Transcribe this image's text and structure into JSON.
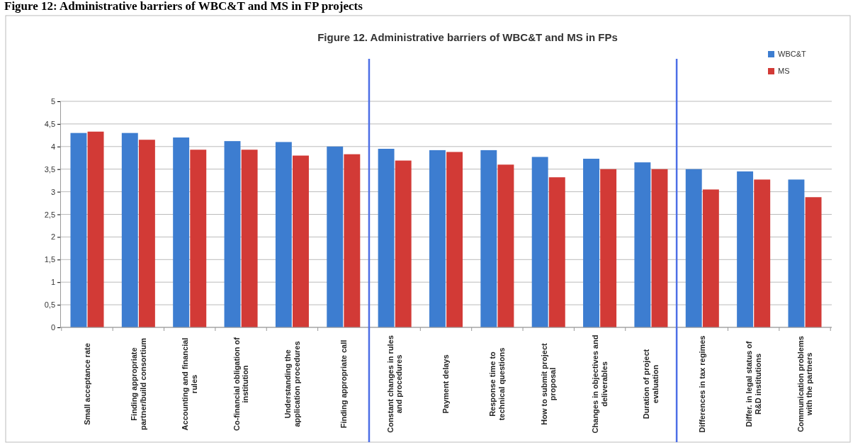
{
  "chart_data": {
    "type": "bar",
    "title": "Figure 12. Administrative barriers of WBC&T and MS in FPs",
    "annotations": [
      "Figure 12: Administrative barriers of WBC&T and MS in FP projects"
    ],
    "categories": [
      "Small acceptance rate",
      "Finding appropriate partner/build consortium",
      "Accounting and financial rules",
      "Co-financial obligation of institution",
      "Understanding the application procedures",
      "Finding appropriate call",
      "Constant changes in rules and procedures",
      "Payment delays",
      "Response time to technical questions",
      "How to submit project proposal",
      "Changes in objectives and deliverables",
      "Duration of project evaluation",
      "Differences in tax regimes",
      "Differ. in legal status of R&D institutions",
      "Communication problems with the partners"
    ],
    "series": [
      {
        "name": "WBC&T",
        "color": "#3d7dd0",
        "values": [
          4.3,
          4.3,
          4.2,
          4.12,
          4.1,
          4.0,
          3.95,
          3.92,
          3.92,
          3.77,
          3.73,
          3.65,
          3.5,
          3.45,
          3.27
        ]
      },
      {
        "name": "MS",
        "color": "#d23a36",
        "values": [
          4.33,
          4.15,
          3.93,
          3.93,
          3.8,
          3.83,
          3.69,
          3.88,
          3.6,
          3.32,
          3.5,
          3.5,
          3.05,
          3.27,
          2.88
        ]
      }
    ],
    "ylim": [
      0,
      5
    ],
    "yticks": [
      0,
      {
        "value": 0.5,
        "label": "0,5"
      },
      1,
      {
        "value": 1.5,
        "label": "1,5"
      },
      2,
      {
        "value": 2.5,
        "label": "2,5"
      },
      3,
      {
        "value": 3.5,
        "label": "3,5"
      },
      4,
      {
        "value": 4.5,
        "label": "4,5"
      },
      5
    ],
    "grid": "y",
    "legend": "top right"
  }
}
